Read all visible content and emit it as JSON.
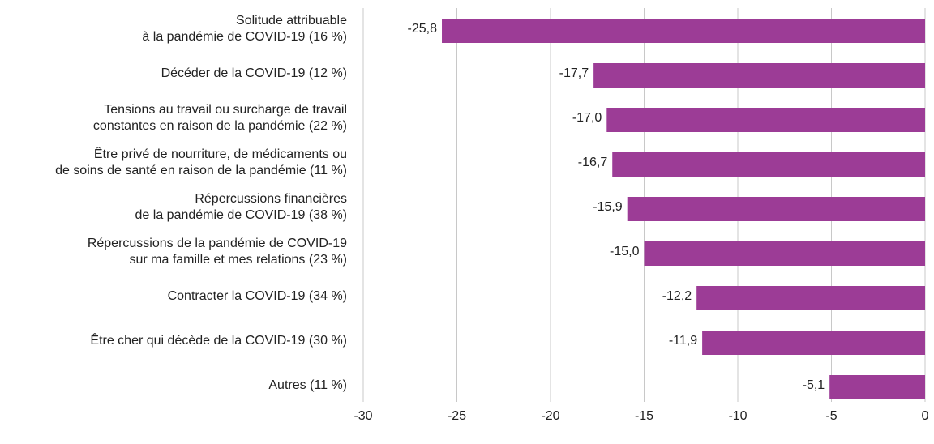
{
  "chart_data": {
    "type": "bar",
    "orientation": "horizontal",
    "categories": [
      "Solitude attribuable\nà la pandémie de COVID-19 (16 %)",
      "Décéder de la COVID-19 (12 %)",
      "Tensions au travail ou surcharge de travail\nconstantes en raison de la pandémie (22 %)",
      "Être privé de nourriture, de médicaments ou\nde soins de santé en raison de la pandémie (11 %)",
      "Répercussions financières\nde la pandémie de COVID-19 (38 %)",
      "Répercussions de la pandémie de COVID-19\nsur ma famille et mes relations (23 %)",
      "Contracter la COVID-19 (34 %)",
      "Être cher qui décède de la COVID-19 (30 %)",
      "Autres (11 %)"
    ],
    "values": [
      -25.8,
      -17.7,
      -17.0,
      -16.7,
      -15.9,
      -15.0,
      -12.2,
      -11.9,
      -5.1
    ],
    "value_labels": [
      "-25,8",
      "-17,7",
      "-17,0",
      "-16,7",
      "-15,9",
      "-15,0",
      "-12,2",
      "-11,9",
      "-5,1"
    ],
    "color": "#9c3c96",
    "xlim": [
      -30,
      0
    ],
    "xticks": [
      -30,
      -25,
      -20,
      -15,
      -10,
      -5,
      0
    ],
    "grid": true
  }
}
